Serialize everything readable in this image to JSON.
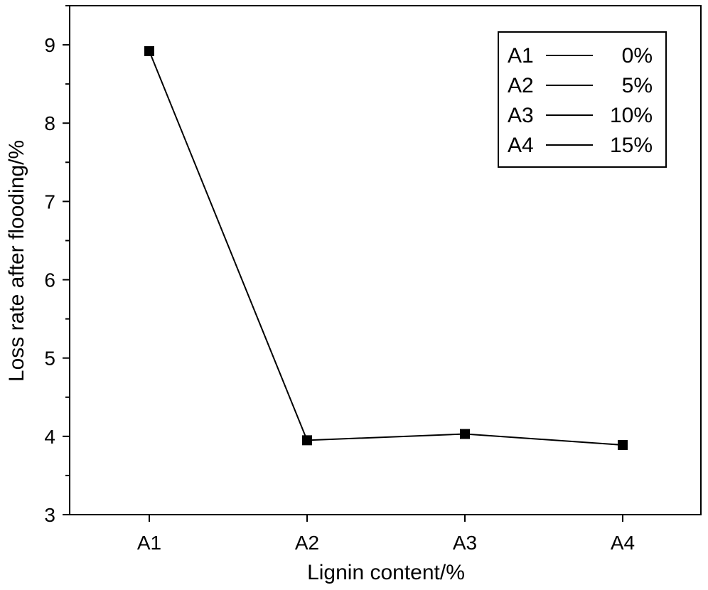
{
  "chart_data": {
    "type": "line",
    "categories": [
      "A1",
      "A2",
      "A3",
      "A4"
    ],
    "series": [
      {
        "values": [
          8.92,
          3.95,
          4.03,
          3.89
        ]
      }
    ],
    "xlabel": "Lignin content/%",
    "ylabel": "Loss rate after flooding/%",
    "ylim": [
      3,
      9.5
    ],
    "yticks": [
      3,
      4,
      5,
      6,
      7,
      8,
      9
    ],
    "grid": false,
    "marker": "square",
    "line_color": "#000000",
    "legend": {
      "placement": "top-right",
      "entries": [
        {
          "key": "A1",
          "label": "0%"
        },
        {
          "key": "A2",
          "label": "5%"
        },
        {
          "key": "A3",
          "label": "10%"
        },
        {
          "key": "A4",
          "label": "15%"
        }
      ]
    }
  }
}
